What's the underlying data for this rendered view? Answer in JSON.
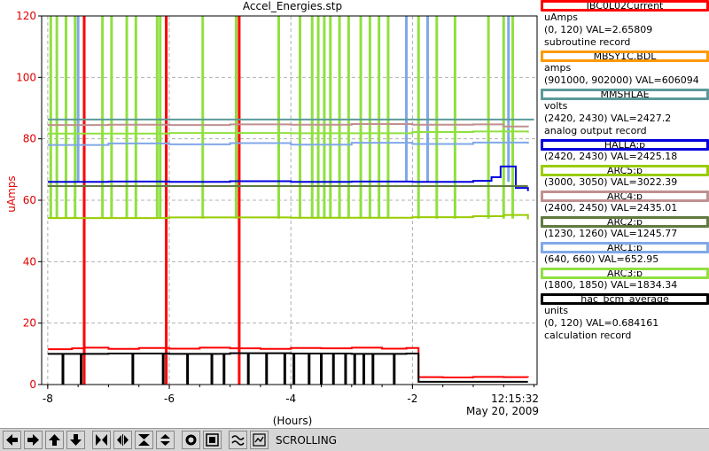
{
  "window": {
    "title": "Accel_Energies.stp"
  },
  "plot": {
    "y_axis_label": "uAmps",
    "x_axis_label": "(Hours)",
    "time_stamp": {
      "time": "12:15:32",
      "date": "May 20, 2009"
    }
  },
  "chart_data": {
    "type": "line",
    "title": "Accel_Energies.stp",
    "xlabel": "(Hours)",
    "ylabel": "uAmps",
    "xlim": [
      -8.1,
      0.05
    ],
    "ylim": [
      0,
      120
    ],
    "x_ticks": [
      -8,
      -6,
      -4,
      -2
    ],
    "x_tick_labels": [
      "-8",
      "-6",
      "-4",
      "-2"
    ],
    "y_ticks": [
      0,
      20,
      40,
      60,
      80,
      100,
      120
    ],
    "y_tick_labels": [
      "0",
      "20",
      "40",
      "60",
      "80",
      "100",
      "120"
    ],
    "grid": true,
    "series": [
      {
        "name": "IBC0L02Current",
        "color": "#ff0000",
        "x": [
          -8.0,
          -7.6,
          -7.4,
          -7.0,
          -6.5,
          -6.0,
          -5.5,
          -5.0,
          -4.5,
          -4.0,
          -3.5,
          -3.0,
          -2.5,
          -2.1,
          -1.9,
          -1.5,
          -1.0,
          -0.5,
          -0.1
        ],
        "y": [
          11.5,
          11.8,
          12.0,
          11.6,
          11.9,
          11.7,
          12.0,
          11.8,
          11.6,
          11.9,
          11.8,
          12.0,
          11.7,
          11.9,
          2.4,
          2.3,
          2.5,
          2.4,
          2.3
        ]
      },
      {
        "name": "MBSY1C.BDL",
        "color": "#ff9900",
        "x": [],
        "y": []
      },
      {
        "name": "MMSHLAE",
        "color": "#5b9a9a",
        "x": [
          -8.0,
          -6.0,
          -4.0,
          -2.0,
          0.0
        ],
        "y": [
          86.3,
          86.3,
          86.3,
          86.3,
          86.3
        ]
      },
      {
        "name": "HALLA:p",
        "color": "#0000dd",
        "x": [
          -8.0,
          -7.0,
          -6.0,
          -5.0,
          -4.0,
          -3.0,
          -2.0,
          -1.0,
          -0.7,
          -0.55,
          -0.3,
          -0.1
        ],
        "y": [
          66.0,
          66.1,
          66.0,
          66.2,
          66.0,
          66.1,
          66.0,
          66.3,
          67.5,
          71.0,
          64.0,
          63.0
        ]
      },
      {
        "name": "ARC5:p",
        "color": "#99cc00",
        "x": [
          -8.0,
          -6.0,
          -4.0,
          -2.0,
          -1.0,
          -0.5,
          -0.1
        ],
        "y": [
          54.2,
          54.4,
          54.3,
          54.5,
          54.8,
          55.2,
          53.8
        ]
      },
      {
        "name": "ARC4:p",
        "color": "#c09090",
        "x": [
          -8.0,
          -7.0,
          -6.0,
          -5.0,
          -4.0,
          -3.0,
          -2.0,
          -1.0,
          -0.5,
          -0.1
        ],
        "y": [
          84.5,
          84.6,
          84.5,
          84.7,
          84.6,
          84.8,
          84.6,
          84.7,
          84.0,
          83.8
        ]
      },
      {
        "name": "ARC2:p",
        "color": "#607a40",
        "x": [
          -8.0,
          -6.0,
          -4.0,
          -2.0,
          -0.1
        ],
        "y": [
          64.6,
          64.6,
          64.6,
          64.6,
          64.6
        ]
      },
      {
        "name": "ARC1:p",
        "color": "#80a8e8",
        "x": [
          -8.0,
          -7.0,
          -6.0,
          -5.0,
          -4.0,
          -3.0,
          -2.0,
          -1.0,
          -0.1
        ],
        "y": [
          78.0,
          78.5,
          78.2,
          78.6,
          78.1,
          78.7,
          78.3,
          78.8,
          78.4
        ]
      },
      {
        "name": "ARC3:p",
        "color": "#90e040",
        "x": [
          -8.0,
          -6.0,
          -4.0,
          -2.0,
          -1.0,
          -0.1
        ],
        "y": [
          81.7,
          81.9,
          81.8,
          82.2,
          82.4,
          82.0
        ]
      },
      {
        "name": "hac_bcm_average",
        "color": "#000000",
        "x": [
          -8.0,
          -7.0,
          -6.0,
          -5.0,
          -4.0,
          -3.0,
          -2.1,
          -1.9,
          -1.0,
          -0.1
        ],
        "y": [
          10.0,
          10.1,
          10.0,
          10.2,
          10.1,
          10.0,
          10.1,
          0.9,
          0.9,
          0.9
        ]
      }
    ],
    "spikes": [
      {
        "series": "ARC3:p",
        "color": "#90e040",
        "x": [
          -7.95,
          -7.85,
          -7.7,
          -7.55,
          -7.1,
          -6.95,
          -6.7,
          -6.55,
          -6.2,
          -6.15,
          -5.45,
          -4.9,
          -4.2,
          -3.85,
          -3.65,
          -3.55,
          -3.45,
          -3.35,
          -3.2,
          -3.05,
          -2.85,
          -2.7,
          -2.55,
          -2.4,
          -1.9,
          -1.6,
          -1.3,
          -0.75,
          -0.5,
          -0.35
        ],
        "from": 54,
        "to": 120
      },
      {
        "series": "ARC1:p",
        "color": "#80a8e8",
        "x": [
          -7.5,
          -6.05,
          -2.1,
          -1.75,
          -0.42
        ],
        "from": 66,
        "to": 120
      },
      {
        "series": "IBC0L02Current",
        "color": "#ff0000",
        "x": [
          -7.4,
          -6.05,
          -4.85
        ],
        "from": 0,
        "to": 120
      },
      {
        "series": "hac_bcm_average",
        "color": "#000000",
        "x": [
          -7.75,
          -7.45,
          -6.6,
          -6.1,
          -5.7,
          -5.3,
          -5.1,
          -4.7,
          -4.4,
          -4.1,
          -3.95,
          -3.7,
          -3.5,
          -3.3,
          -3.1,
          -2.95,
          -2.8,
          -2.65,
          -2.3
        ],
        "from": 0,
        "to": 10
      }
    ]
  },
  "legend": [
    {
      "name": "IBC0L02Current",
      "color": "#ff0000",
      "lines": [
        "uAmps",
        "(0, 120) VAL=2.65809",
        "subroutine record"
      ]
    },
    {
      "name": "MBSY1C.BDL",
      "color": "#ff9900",
      "lines": [
        "amps",
        "(901000, 902000)  VAL=606094"
      ]
    },
    {
      "name": "MMSHLAE",
      "color": "#5b9a9a",
      "lines": [
        "volts",
        "(2420, 2430)  VAL=2427.2",
        "analog output record"
      ]
    },
    {
      "name": "HALLA:p",
      "color": "#0000dd",
      "lines": [
        "(2420, 2430) VAL=2425.18"
      ]
    },
    {
      "name": "ARC5:p",
      "color": "#99cc00",
      "lines": [
        "(3000, 3050) VAL=3022.39"
      ]
    },
    {
      "name": "ARC4:p",
      "color": "#c09090",
      "lines": [
        "(2400, 2450) VAL=2435.01"
      ]
    },
    {
      "name": "ARC2:p",
      "color": "#607a40",
      "lines": [
        "(1230, 1260) VAL=1245.77"
      ]
    },
    {
      "name": "ARC1:p",
      "color": "#80a8e8",
      "lines": [
        "(640, 660) VAL=652.95"
      ]
    },
    {
      "name": "ARC3:p",
      "color": "#90e040",
      "lines": [
        "(1800, 1850) VAL=1834.34"
      ]
    },
    {
      "name": "hac_bcm_average",
      "color": "#000000",
      "lines": [
        "units",
        "(0, 120) VAL=0.684161",
        "calculation record"
      ]
    }
  ],
  "toolbar": {
    "mode_label": "SCROLLING",
    "buttons": [
      {
        "id": "arrow-left-icon"
      },
      {
        "id": "arrow-right-icon"
      },
      {
        "id": "arrow-up-icon"
      },
      {
        "id": "arrow-down-icon"
      },
      {
        "id": "zoom-in-x-icon"
      },
      {
        "id": "zoom-out-x-icon"
      },
      {
        "id": "zoom-in-y-icon"
      },
      {
        "id": "zoom-out-y-icon"
      },
      {
        "id": "record-icon"
      },
      {
        "id": "crosshair-icon"
      },
      {
        "id": "scroll-mode-icon"
      },
      {
        "id": "pause-icon"
      }
    ]
  }
}
